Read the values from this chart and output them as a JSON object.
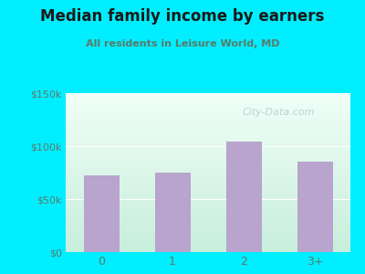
{
  "title": "Median family income by earners",
  "subtitle": "All residents in Leisure World, MD",
  "categories": [
    "0",
    "1",
    "2",
    "3+"
  ],
  "values": [
    72000,
    75000,
    104000,
    85000
  ],
  "bar_color": "#b8a4cc",
  "title_color": "#1a1a1a",
  "subtitle_color": "#5a7a6a",
  "tick_label_color": "#5a7a6a",
  "background_outer": "#00eeff",
  "grad_top": "#f0fff8",
  "grad_bottom": "#c8eedc",
  "ylim": [
    0,
    150000
  ],
  "yticks": [
    0,
    50000,
    100000,
    150000
  ],
  "ytick_labels": [
    "$0",
    "$50k",
    "$100k",
    "$150k"
  ],
  "watermark": "City-Data.com"
}
